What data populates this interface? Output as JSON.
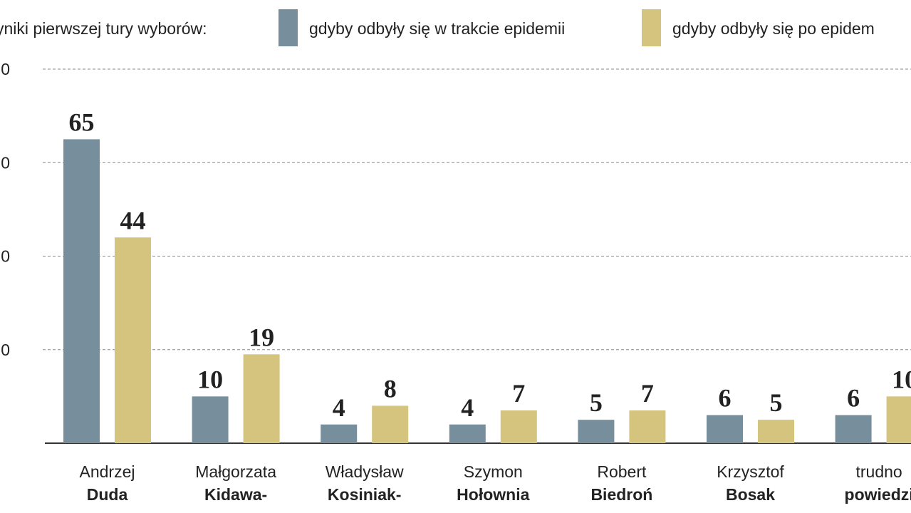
{
  "legend": {
    "lead": "yniki pierwszej tury wyborów:",
    "items": [
      {
        "label": "gdyby odbyły się w trakcie epidemii",
        "color": "#778f9c"
      },
      {
        "label": "gdyby odbyły się po epidem",
        "color": "#d4c47e"
      }
    ]
  },
  "chart_data": {
    "type": "bar",
    "ylim": [
      0,
      80
    ],
    "y_ticks": [
      "0",
      "0",
      "0",
      "0"
    ],
    "grid": true,
    "categories": [
      {
        "first": "Andrzej",
        "last": "Duda"
      },
      {
        "first": "Małgorzata",
        "last": "Kidawa-"
      },
      {
        "first": "Władysław",
        "last": "Kosiniak-"
      },
      {
        "first": "Szymon",
        "last": "Hołownia"
      },
      {
        "first": "Robert",
        "last": "Biedroń"
      },
      {
        "first": "Krzysztof",
        "last": "Bosak"
      },
      {
        "first": "trudno",
        "last": "powiedzi"
      }
    ],
    "series": [
      {
        "name": "gdyby odbyły się w trakcie epidemii",
        "color": "#778f9c",
        "values": [
          65,
          10,
          4,
          4,
          5,
          6,
          6
        ]
      },
      {
        "name": "gdyby odbyły się po epidem",
        "color": "#d4c47e",
        "values": [
          44,
          19,
          8,
          7,
          7,
          5,
          10
        ]
      }
    ]
  }
}
